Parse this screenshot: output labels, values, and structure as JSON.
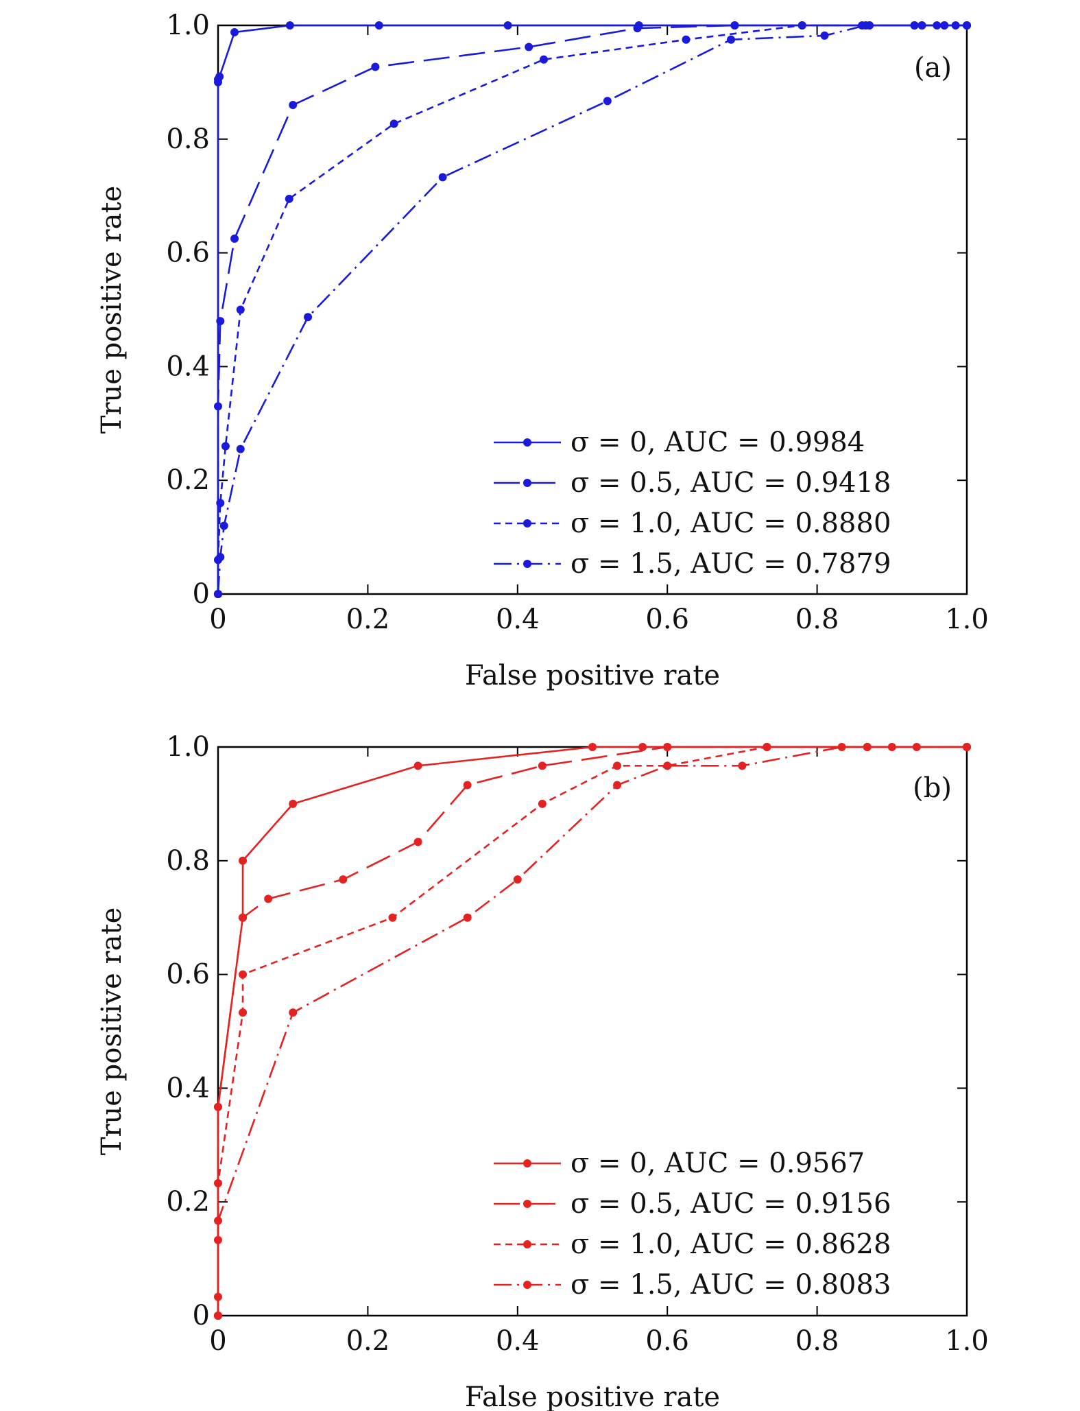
{
  "chart_data": [
    {
      "type": "line",
      "panel_tag": "(a)",
      "xlabel": "False positive rate",
      "ylabel": "True positive rate",
      "xlim": [
        0,
        1
      ],
      "ylim": [
        0,
        1
      ],
      "xticks": [
        "0",
        "0.2",
        "0.4",
        "0.6",
        "0.8",
        "1.0"
      ],
      "yticks": [
        "0",
        "0.2",
        "0.4",
        "0.6",
        "0.8",
        "1.0"
      ],
      "grid": false,
      "legend_position": "bottom-right",
      "color": "#1a1adb",
      "series": [
        {
          "name": "σ = 0,  AUC = 0.9984",
          "dash": "solid",
          "x": [
            0,
            0,
            0,
            0.002,
            0.022,
            0.096,
            0.215,
            0.387,
            0.562,
            0.69,
            0.78,
            0.87,
            0.93,
            0.94,
            0.97,
            0.985,
            1.0
          ],
          "y": [
            0,
            0.9,
            0.905,
            0.91,
            0.988,
            1.0,
            1.0,
            1.0,
            1.0,
            1.0,
            1.0,
            1.0,
            1.0,
            1.0,
            1.0,
            1.0,
            1.0
          ]
        },
        {
          "name": "σ = 0.5,  AUC = 0.9418",
          "dash": "longdash",
          "x": [
            0,
            0,
            0.003,
            0.022,
            0.1,
            0.21,
            0.415,
            0.56,
            0.69,
            0.78,
            0.87,
            0.93,
            0.97,
            1.0
          ],
          "y": [
            0,
            0.33,
            0.48,
            0.625,
            0.86,
            0.927,
            0.962,
            0.995,
            1.0,
            1.0,
            1.0,
            1.0,
            1.0,
            1.0
          ]
        },
        {
          "name": "σ = 1.0,  AUC = 0.8880",
          "dash": "shortdash",
          "x": [
            0,
            0,
            0.003,
            0.01,
            0.03,
            0.095,
            0.235,
            0.435,
            0.625,
            0.78,
            0.86,
            0.94,
            0.96,
            1.0
          ],
          "y": [
            0,
            0.06,
            0.16,
            0.26,
            0.5,
            0.695,
            0.827,
            0.94,
            0.975,
            1.0,
            1.0,
            1.0,
            1.0,
            1.0
          ]
        },
        {
          "name": "σ = 1.5,  AUC = 0.7879",
          "dash": "dashdot",
          "x": [
            0,
            0.003,
            0.008,
            0.03,
            0.12,
            0.3,
            0.52,
            0.685,
            0.81,
            0.865,
            0.93,
            1.0
          ],
          "y": [
            0,
            0.065,
            0.12,
            0.255,
            0.487,
            0.733,
            0.867,
            0.975,
            0.982,
            1.0,
            1.0,
            1.0
          ]
        }
      ]
    },
    {
      "type": "line",
      "panel_tag": "(b)",
      "xlabel": "False positive rate",
      "ylabel": "True positive rate",
      "xlim": [
        0,
        1
      ],
      "ylim": [
        0,
        1
      ],
      "xticks": [
        "0",
        "0.2",
        "0.4",
        "0.6",
        "0.8",
        "1.0"
      ],
      "yticks": [
        "0",
        "0.2",
        "0.4",
        "0.6",
        "0.8",
        "1.0"
      ],
      "grid": false,
      "legend_position": "bottom-right",
      "color": "#e52222",
      "series": [
        {
          "name": "σ = 0,  AUC = 0.9567",
          "dash": "solid",
          "x": [
            0,
            0,
            0.033,
            0.033,
            0.1,
            0.267,
            0.5,
            0.567,
            0.6,
            0.733,
            0.867,
            1.0
          ],
          "y": [
            0,
            0.367,
            0.7,
            0.8,
            0.9,
            0.967,
            1.0,
            1.0,
            1.0,
            1.0,
            1.0,
            1.0
          ]
        },
        {
          "name": "σ = 0.5,  AUC = 0.9156",
          "dash": "longdash",
          "x": [
            0,
            0,
            0.033,
            0.067,
            0.167,
            0.267,
            0.333,
            0.433,
            0.6,
            0.733,
            0.867,
            1.0
          ],
          "y": [
            0,
            0.367,
            0.7,
            0.733,
            0.767,
            0.833,
            0.933,
            0.967,
            1.0,
            1.0,
            1.0,
            1.0
          ]
        },
        {
          "name": "σ = 1.0,  AUC = 0.8628",
          "dash": "shortdash",
          "x": [
            0,
            0,
            0.033,
            0.033,
            0.233,
            0.433,
            0.533,
            0.6,
            0.733,
            0.867,
            0.933,
            1.0
          ],
          "y": [
            0,
            0.233,
            0.533,
            0.6,
            0.7,
            0.9,
            0.967,
            0.967,
            1.0,
            1.0,
            1.0,
            1.0
          ]
        },
        {
          "name": "σ = 1.5,  AUC = 0.8083",
          "dash": "dashdot",
          "x": [
            0,
            0,
            0,
            0,
            0.1,
            0.333,
            0.4,
            0.533,
            0.6,
            0.7,
            0.833,
            0.9,
            1.0
          ],
          "y": [
            0,
            0.033,
            0.133,
            0.167,
            0.533,
            0.7,
            0.767,
            0.933,
            0.967,
            0.967,
            1.0,
            1.0,
            1.0
          ]
        }
      ]
    }
  ]
}
